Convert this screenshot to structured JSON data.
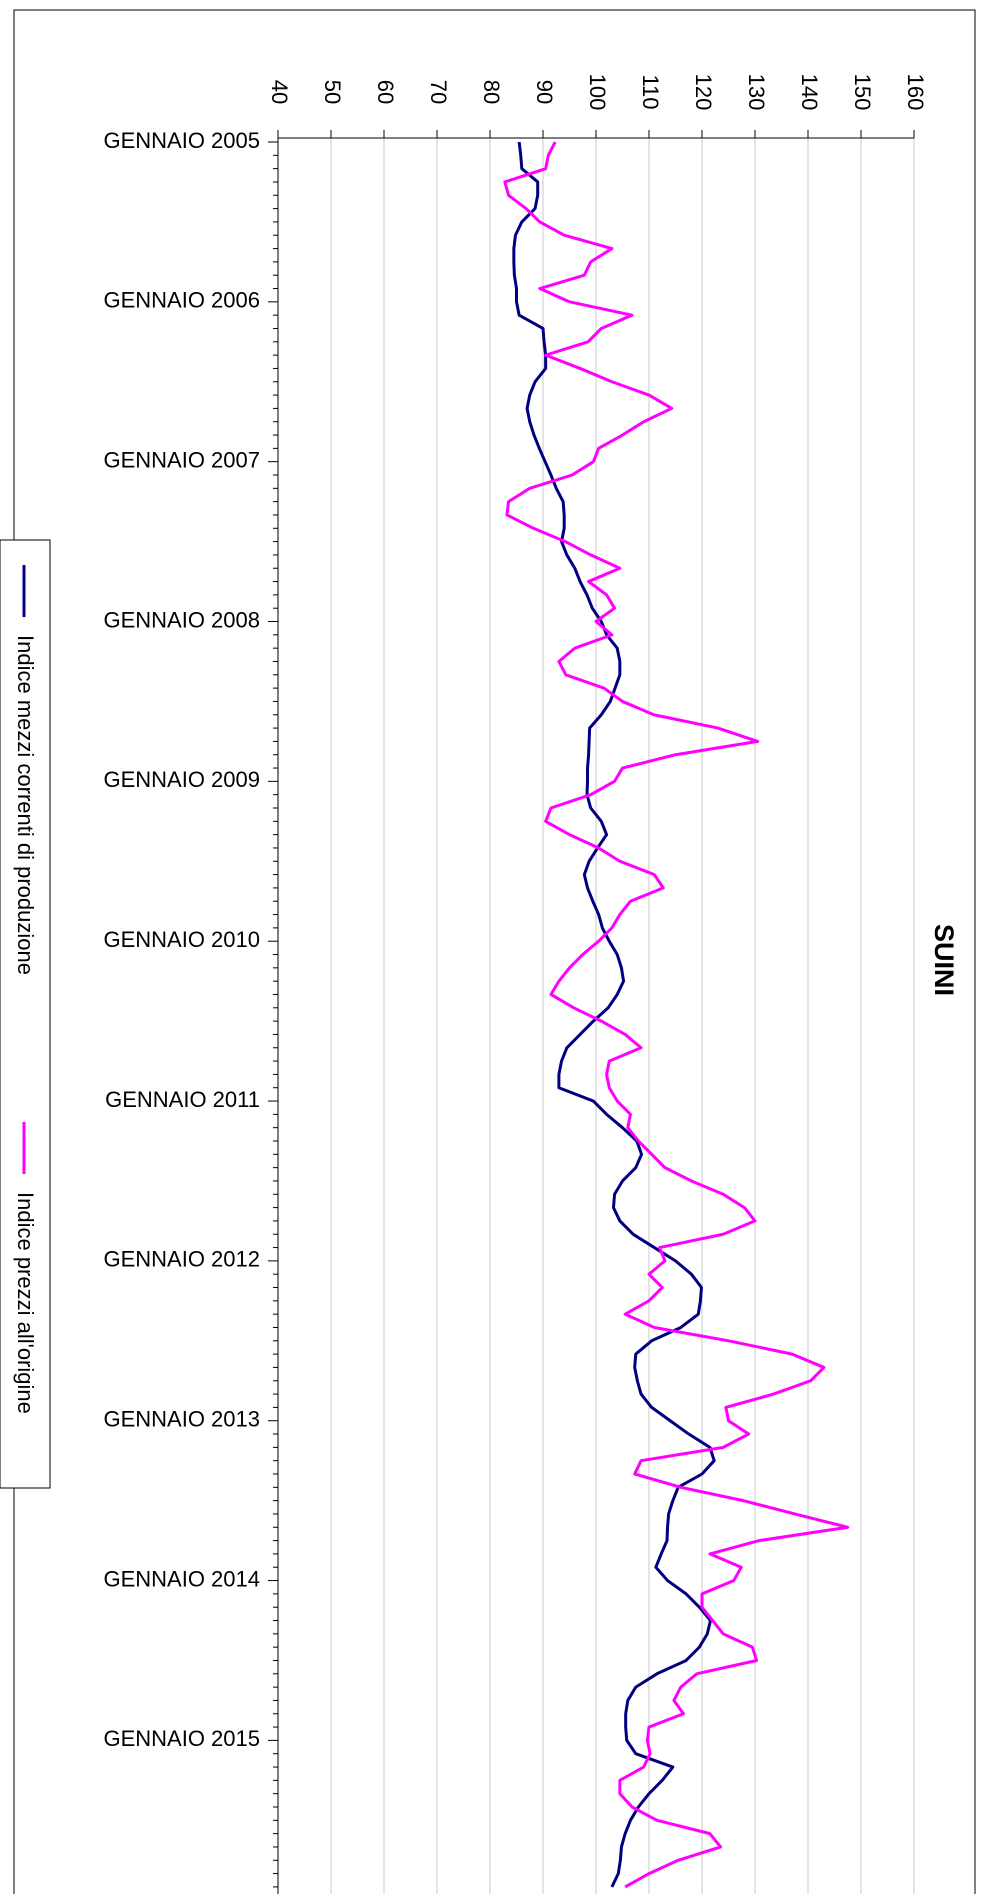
{
  "chart_data": {
    "type": "line",
    "title": "SUINI",
    "title_color": "#ff00ff",
    "grid": true,
    "legend": "left",
    "ylim": [
      40,
      160
    ],
    "yticks": [
      40,
      50,
      60,
      70,
      80,
      90,
      100,
      110,
      120,
      130,
      140,
      150,
      160
    ],
    "categories": [
      "GENNAIO 2005",
      null,
      null,
      null,
      null,
      null,
      null,
      null,
      null,
      null,
      null,
      null,
      "GENNAIO 2006",
      null,
      null,
      null,
      null,
      null,
      null,
      null,
      null,
      null,
      null,
      null,
      "GENNAIO 2007",
      null,
      null,
      null,
      null,
      null,
      null,
      null,
      null,
      null,
      null,
      null,
      "GENNAIO 2008",
      null,
      null,
      null,
      null,
      null,
      null,
      null,
      null,
      null,
      null,
      null,
      "GENNAIO 2009",
      null,
      null,
      null,
      null,
      null,
      null,
      null,
      null,
      null,
      null,
      null,
      "GENNAIO 2010",
      null,
      null,
      null,
      null,
      null,
      null,
      null,
      null,
      null,
      null,
      null,
      "GENNAIO 2011",
      null,
      null,
      null,
      null,
      null,
      null,
      null,
      null,
      null,
      null,
      null,
      "GENNAIO 2012",
      null,
      null,
      null,
      null,
      null,
      null,
      null,
      null,
      null,
      null,
      null,
      "GENNAIO 2013",
      null,
      null,
      null,
      null,
      null,
      null,
      null,
      null,
      null,
      null,
      null,
      "GENNAIO 2014",
      null,
      null,
      null,
      null,
      null,
      null,
      null,
      null,
      null,
      null,
      null,
      "GENNAIO 2015",
      null,
      null,
      null,
      null,
      null,
      null,
      null,
      null,
      null,
      null,
      null
    ],
    "series": [
      {
        "name": "Indice mezzi correnti di produzione",
        "color": "#000080",
        "values": [
          85.5,
          85.8,
          86,
          89,
          89,
          88.5,
          86,
          84.8,
          84.5,
          84.5,
          84.6,
          85,
          85,
          85.5,
          90,
          90.2,
          90.5,
          90.5,
          88.5,
          87.5,
          87,
          87.5,
          88.3,
          89.3,
          90.4,
          91.5,
          92.5,
          93.8,
          94,
          94,
          93.5,
          94.5,
          96,
          97,
          98.3,
          99.3,
          101,
          102,
          104,
          104.5,
          104.5,
          103.6,
          102.7,
          101,
          98.8,
          98.7,
          98.6,
          98.4,
          98.4,
          98.3,
          99,
          101,
          102,
          100.3,
          98.7,
          97.8,
          98.4,
          99.4,
          100.5,
          101.2,
          102.5,
          104,
          104.8,
          105.2,
          104,
          102.3,
          99.5,
          97,
          94.5,
          93.5,
          93,
          93,
          99.5,
          102,
          105,
          107.7,
          108.6,
          107.5,
          105,
          103.5,
          103.3,
          104.5,
          107,
          111,
          115,
          118,
          119.9,
          119.7,
          119.3,
          116,
          110.5,
          107.5,
          107.3,
          107.8,
          108.5,
          110.5,
          114,
          117.5,
          121.5,
          122.3,
          120,
          115.5,
          114.5,
          113.7,
          113.5,
          113.4,
          112.3,
          111.3,
          113.5,
          117,
          119.5,
          121.6,
          121,
          119.5,
          117,
          111.5,
          107.5,
          106,
          105.6,
          105.6,
          105.8,
          107.5,
          114.5,
          112.5,
          110,
          108,
          106.5,
          105.5,
          104.8,
          104.6,
          104.2,
          103
        ]
      },
      {
        "name": "Indice prezzi all'origine",
        "color": "#ff00ff",
        "values": [
          92.3,
          91,
          90.5,
          82.8,
          83.5,
          86.8,
          89.4,
          94,
          103,
          99,
          97.8,
          89.4,
          95,
          106.8,
          101,
          98.5,
          90.5,
          97,
          103,
          110,
          114.3,
          109,
          105,
          100.5,
          99.5,
          95.5,
          87.5,
          83.5,
          83.2,
          88.2,
          94.2,
          99,
          104.5,
          98.6,
          102,
          103.5,
          100,
          103,
          96,
          93,
          94.3,
          101.5,
          105,
          110.9,
          123,
          130.5,
          115,
          105,
          103.5,
          99,
          91.5,
          90.5,
          95,
          100.5,
          104.5,
          111,
          112.7,
          106.5,
          104.5,
          103,
          100.5,
          97.5,
          95,
          93,
          91.5,
          95.8,
          101,
          105.5,
          108.5,
          102.5,
          102,
          102.5,
          104,
          106.5,
          106,
          108,
          110.5,
          113,
          118,
          124,
          128,
          130,
          124,
          112,
          113,
          110,
          112.5,
          110,
          105.5,
          111,
          125,
          137,
          143,
          140.5,
          133.5,
          124.5,
          125,
          128.8,
          124,
          108.5,
          107.3,
          116,
          127.8,
          137.5,
          147.5,
          130.8,
          121.5,
          127.4,
          126,
          120,
          120,
          122,
          124,
          129.5,
          130.3,
          119,
          116,
          114.7,
          116.5,
          110,
          109.7,
          110.2,
          109,
          104.5,
          104.5,
          106.8,
          111.5,
          121.5,
          123.5,
          115.5,
          110,
          105.5
        ]
      }
    ]
  }
}
